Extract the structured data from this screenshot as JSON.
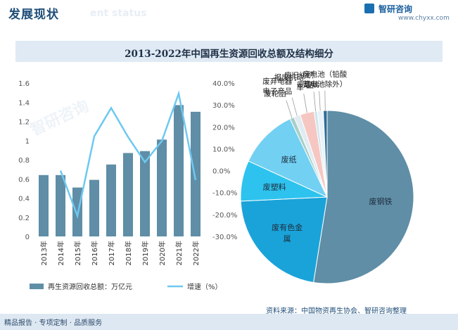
{
  "header": {
    "title": "发展现状",
    "ghost_text": "ent status",
    "brand": "智研咨询",
    "site": "www.chyxx.com"
  },
  "chart_title": "2013-2022年中国再生资源回收总额及结构细分",
  "watermark": "智研咨询",
  "footer": {
    "left": "精品报告 · 专项定制 · 品质服务",
    "source": "资料来源：中国物资再生协会、智研咨询整理"
  },
  "colors": {
    "bar": "#5f8ea6",
    "line": "#6ec8f0",
    "header_text": "#1f4e79",
    "band": "#dfeaf4"
  },
  "chart_data": [
    {
      "type": "bar",
      "categories": [
        "2013年",
        "2014年",
        "2015年",
        "2016年",
        "2017年",
        "2018年",
        "2019年",
        "2020年",
        "2021年",
        "2022年"
      ],
      "series": [
        {
          "name": "再生资源回收总额：万亿元",
          "type": "bar",
          "axis": "left",
          "values": [
            0.64,
            0.64,
            0.51,
            0.59,
            0.75,
            0.87,
            0.89,
            1.01,
            1.37,
            1.3
          ]
        },
        {
          "name": "增速（%）",
          "type": "line",
          "axis": "right",
          "values": [
            null,
            0.0,
            -20.6,
            15.7,
            28.6,
            15.4,
            3.9,
            13.5,
            35.2,
            -4.3
          ]
        }
      ],
      "y_left": {
        "ticks": [
          "0",
          "0.2",
          "0.4",
          "0.6",
          "0.8",
          "1",
          "1.2",
          "1.4",
          "1.6"
        ],
        "ylim": [
          0,
          1.6
        ]
      },
      "y_right": {
        "ticks": [
          "40.0%",
          "30.0%",
          "20.0%",
          "10.0%",
          "0.0%",
          "-10.0%",
          "-20.0%",
          "-30.0%"
        ],
        "ylim": [
          -30,
          40
        ]
      },
      "legend": "bottom"
    },
    {
      "type": "pie",
      "slices": [
        {
          "label": "废钢铁",
          "value": 52.0,
          "color": "#5f8ea6",
          "inside": true
        },
        {
          "label": "废有色金属",
          "value": 21.5,
          "color": "#1aa3d9",
          "inside": true,
          "lines": [
            "废有色金",
            "属"
          ]
        },
        {
          "label": "废塑料",
          "value": 7.5,
          "color": "#2ec3ee",
          "inside": true
        },
        {
          "label": "废纸",
          "value": 11.0,
          "color": "#72d0f3",
          "inside": true
        },
        {
          "label": "废轮胎",
          "value": 0.8,
          "color": "#a8cfc8",
          "inside": false
        },
        {
          "label": "废弃电器电子产品",
          "value": 1.2,
          "color": "#e0ecf2",
          "inside": false,
          "lines": [
            "废弃电器",
            "电子产品"
          ]
        },
        {
          "label": "报废机动车",
          "value": 2.6,
          "color": "#f6c7c2",
          "inside": false,
          "lines": [
            "报废机动",
            "车"
          ]
        },
        {
          "label": "废旧纺织品",
          "value": 0.6,
          "color": "#cfe6ef",
          "inside": false,
          "lines": [
            "废旧纺织",
            "品"
          ]
        },
        {
          "label": "废玻璃",
          "value": 1.1,
          "color": "#e9f3f7",
          "inside": false
        },
        {
          "label": "废电池（铅酸蓄电池除外）",
          "value": 0.7,
          "color": "#2c6d96",
          "inside": false,
          "lines": [
            "废电池（铅酸",
            "蓄电池除外）"
          ]
        }
      ]
    }
  ]
}
